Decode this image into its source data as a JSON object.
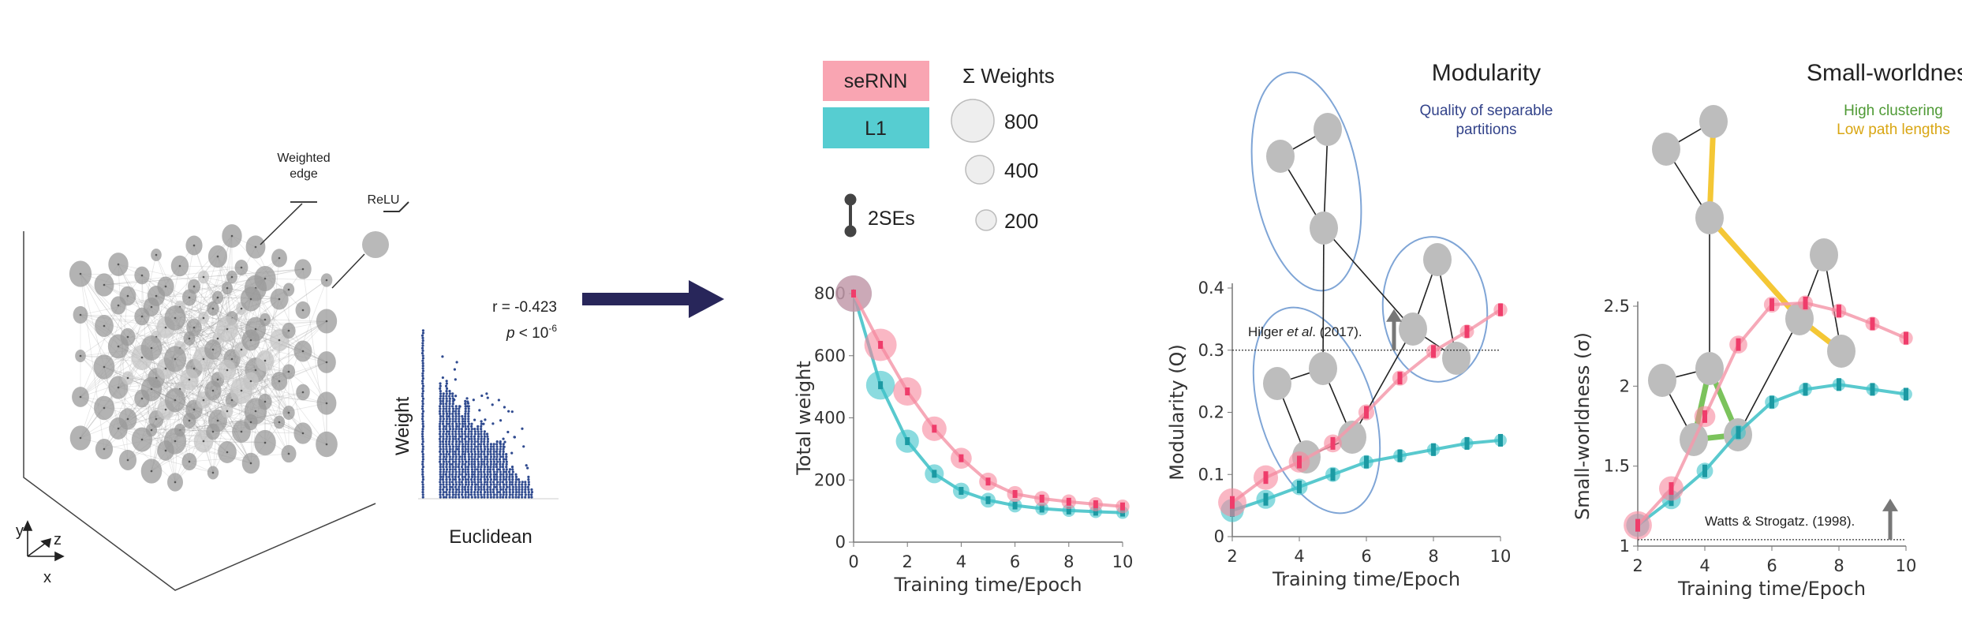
{
  "left_panel": {
    "weighted_edge_line1": "Weighted",
    "weighted_edge_line2": "edge",
    "relu_label": "ReLU",
    "axis_x": "x",
    "axis_y": "y",
    "axis_z": "z"
  },
  "inset": {
    "r_text": "r = -0.423",
    "p_symbol": "p",
    "p_text": " < 10",
    "p_exponent": "-6",
    "ylabel": "Weight",
    "xlabel": "Euclidean"
  },
  "legend": {
    "series": [
      {
        "label": "seRNN",
        "color": "#f9a5b2"
      },
      {
        "label": "L1",
        "color": "#56cdd1"
      }
    ],
    "weights_title": "Σ Weights",
    "weight_sizes": [
      "800",
      "400",
      "200"
    ],
    "error_label": "2SEs"
  },
  "diagrams": {
    "modularity": {
      "title": "Modularity",
      "subtitle_line1": "Quality of separable",
      "subtitle_line2": "partitions",
      "subtitle_color": "#33438a"
    },
    "small_world": {
      "title": "Small-worldness",
      "line1": "High clustering",
      "line1_color": "#4f9a35",
      "line2": "Low path lengths",
      "line2_color": "#d9a613"
    }
  },
  "colors": {
    "serNN_line": "#f49aab",
    "serNN_dot": "#ef3d6b",
    "l1_line": "#3cc0c6",
    "l1_dot": "#1c9aa3",
    "arrow": "#28265a"
  },
  "chart_data": [
    {
      "type": "line",
      "xlabel": "Training time/Epoch",
      "ylabel": "Total weight",
      "xlim": [
        0,
        10
      ],
      "ylim": [
        0,
        800
      ],
      "xticks": [
        "0",
        "2",
        "4",
        "6",
        "8",
        "10"
      ],
      "yticks": [
        "0",
        "200",
        "400",
        "600",
        "800"
      ],
      "x": [
        0,
        1,
        2,
        3,
        4,
        5,
        6,
        7,
        8,
        9,
        10
      ],
      "series": [
        {
          "name": "seRNN",
          "values": [
            800,
            635,
            485,
            365,
            270,
            195,
            155,
            140,
            130,
            122,
            115
          ]
        },
        {
          "name": "L1",
          "values": [
            800,
            505,
            325,
            220,
            165,
            135,
            118,
            108,
            102,
            98,
            95
          ]
        }
      ]
    },
    {
      "type": "line",
      "xlabel": "Training time/Epoch",
      "ylabel": "Modularity (Q)",
      "xlim": [
        2,
        10
      ],
      "ylim": [
        0,
        0.4
      ],
      "xticks": [
        "2",
        "4",
        "6",
        "8",
        "10"
      ],
      "yticks": [
        "0",
        "0.1",
        "0.2",
        "0.3",
        "0.4"
      ],
      "x": [
        2,
        3,
        4,
        5,
        6,
        7,
        8,
        9,
        10
      ],
      "series": [
        {
          "name": "seRNN",
          "values": [
            0.055,
            0.095,
            0.12,
            0.15,
            0.2,
            0.255,
            0.298,
            0.33,
            0.365
          ]
        },
        {
          "name": "L1",
          "values": [
            0.042,
            0.06,
            0.08,
            0.1,
            0.12,
            0.13,
            0.14,
            0.15,
            0.155
          ]
        }
      ],
      "reference": {
        "value": 0.3,
        "label_pre": "Hilger ",
        "label_italic": "et al",
        "label_post": ". (2017)."
      }
    },
    {
      "type": "line",
      "xlabel": "Training time/Epoch",
      "ylabel": "Small-worldness (σ)",
      "xlim": [
        2,
        10
      ],
      "ylim": [
        1,
        2.5
      ],
      "xticks": [
        "2",
        "4",
        "6",
        "8",
        "10"
      ],
      "yticks": [
        "1",
        "1.5",
        "2",
        "2.5"
      ],
      "x": [
        2,
        3,
        4,
        5,
        6,
        7,
        8,
        9,
        10
      ],
      "series": [
        {
          "name": "seRNN",
          "values": [
            1.13,
            1.36,
            1.81,
            2.26,
            2.51,
            2.52,
            2.47,
            2.39,
            2.3
          ]
        },
        {
          "name": "L1",
          "values": [
            1.13,
            1.29,
            1.47,
            1.71,
            1.9,
            1.98,
            2.01,
            1.98,
            1.95
          ]
        }
      ],
      "reference": {
        "value": 1.04,
        "label_pre": "Watts & Strogatz. (1998).",
        "label_italic": "",
        "label_post": ""
      }
    }
  ]
}
